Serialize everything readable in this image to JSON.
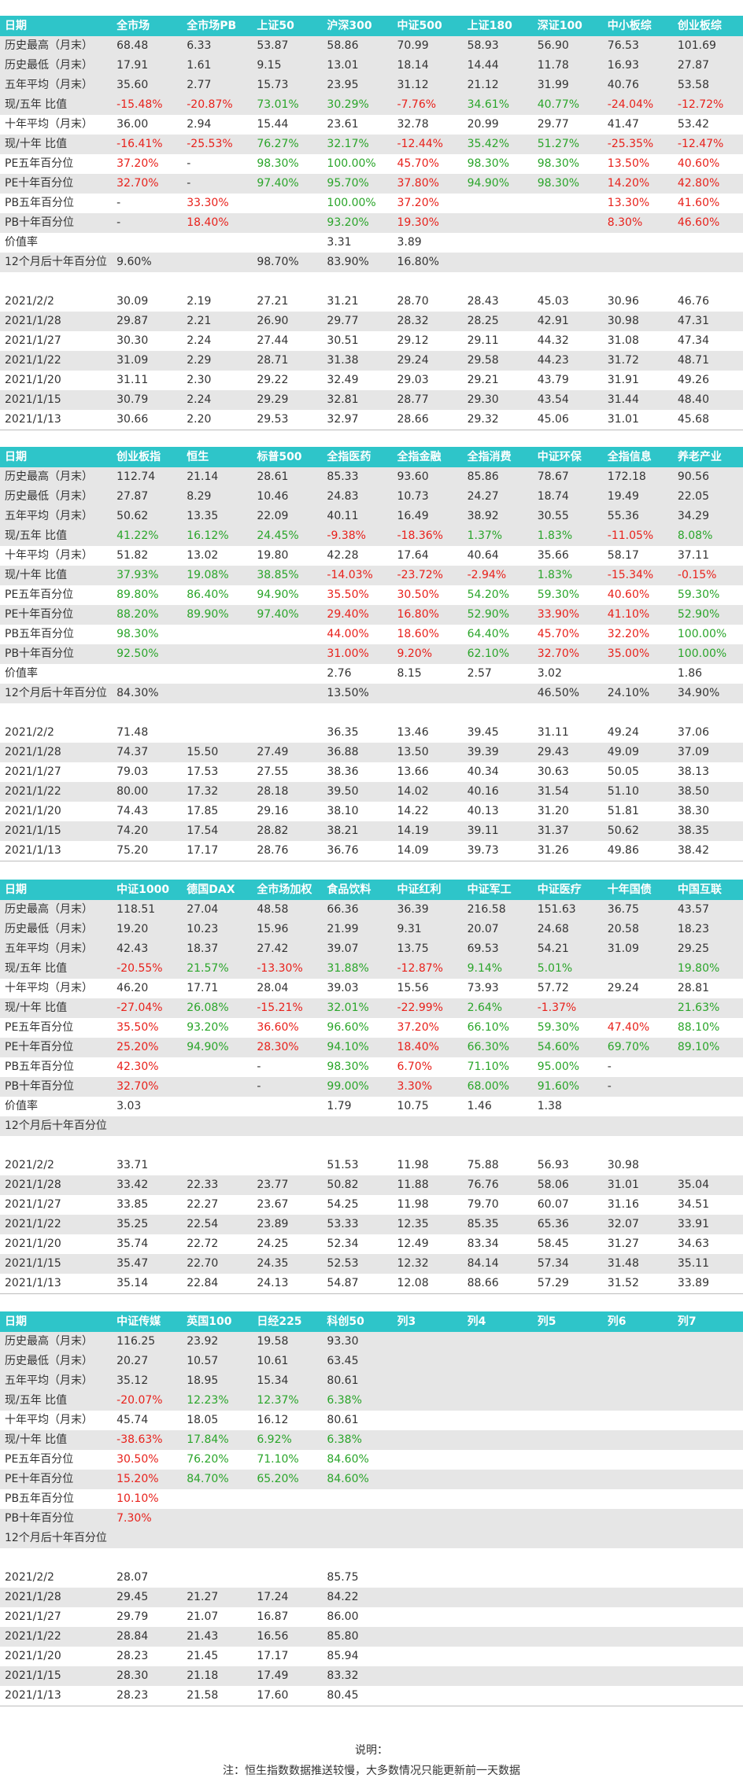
{
  "colors": {
    "header_bg": "#2ec5c9",
    "stripe_bg": "#e6e6e6",
    "up": "#2aa52a",
    "down": "#e8211b"
  },
  "tables": [
    {
      "columns": [
        "日期",
        "全市场",
        "全市场PB",
        "上证50",
        "沪深300",
        "中证500",
        "上证180",
        "深证100",
        "中小板综",
        "创业板综"
      ],
      "rows": [
        [
          "历史最高（月末）",
          "68.48",
          "6.33",
          "53.87",
          "58.86",
          "70.99",
          "58.93",
          "56.90",
          "76.53",
          "101.69"
        ],
        [
          "历史最低（月末）",
          "17.91",
          "1.61",
          "9.15",
          "13.01",
          "18.14",
          "14.44",
          "11.78",
          "16.93",
          "27.87"
        ],
        [
          "五年平均（月末）",
          "35.60",
          "2.77",
          "15.73",
          "23.95",
          "31.12",
          "21.12",
          "31.99",
          "40.76",
          "53.58"
        ],
        [
          "现/五年 比值",
          "-15.48%",
          "-20.87%",
          "73.01%",
          "30.29%",
          "-7.76%",
          "34.61%",
          "40.77%",
          "-24.04%",
          "-12.72%"
        ],
        [
          "十年平均（月末）",
          "36.00",
          "2.94",
          "15.44",
          "23.61",
          "32.78",
          "20.99",
          "29.77",
          "41.47",
          "53.42"
        ],
        [
          "现/十年 比值",
          "-16.41%",
          "-25.53%",
          "76.27%",
          "32.17%",
          "-12.44%",
          "35.42%",
          "51.27%",
          "-25.35%",
          "-12.47%"
        ],
        [
          "PE五年百分位",
          "37.20%",
          "-",
          "98.30%",
          "100.00%",
          "45.70%",
          "98.30%",
          "98.30%",
          "13.50%",
          "40.60%"
        ],
        [
          "PE十年百分位",
          "32.70%",
          "-",
          "97.40%",
          "95.70%",
          "37.80%",
          "94.90%",
          "98.30%",
          "14.20%",
          "42.80%"
        ],
        [
          "PB五年百分位",
          "-",
          "33.30%",
          "",
          "100.00%",
          "37.20%",
          "",
          "",
          "13.30%",
          "41.60%"
        ],
        [
          "PB十年百分位",
          "-",
          "18.40%",
          "",
          "93.20%",
          "19.30%",
          "",
          "",
          "8.30%",
          "46.60%"
        ],
        [
          "价值率",
          "",
          "",
          "",
          "3.31",
          "3.89",
          "",
          "",
          "",
          ""
        ],
        [
          "12个月后十年百分位",
          "9.60%",
          "",
          "98.70%",
          "83.90%",
          "16.80%",
          "",
          "",
          "",
          ""
        ],
        [
          "",
          "",
          "",
          "",
          "",
          "",
          "",
          "",
          "",
          ""
        ],
        [
          "2021/2/2",
          "30.09",
          "2.19",
          "27.21",
          "31.21",
          "28.70",
          "28.43",
          "45.03",
          "30.96",
          "46.76"
        ],
        [
          "2021/1/28",
          "29.87",
          "2.21",
          "26.90",
          "29.77",
          "28.32",
          "28.25",
          "42.91",
          "30.98",
          "47.31"
        ],
        [
          "2021/1/27",
          "30.30",
          "2.24",
          "27.44",
          "30.51",
          "29.12",
          "29.11",
          "44.32",
          "31.08",
          "47.34"
        ],
        [
          "2021/1/22",
          "31.09",
          "2.29",
          "28.71",
          "31.38",
          "29.24",
          "29.58",
          "44.23",
          "31.72",
          "48.71"
        ],
        [
          "2021/1/20",
          "31.11",
          "2.30",
          "29.22",
          "32.49",
          "29.03",
          "29.21",
          "43.79",
          "31.91",
          "49.26"
        ],
        [
          "2021/1/15",
          "30.79",
          "2.24",
          "29.29",
          "32.81",
          "28.77",
          "29.30",
          "43.54",
          "31.44",
          "48.40"
        ],
        [
          "2021/1/13",
          "30.66",
          "2.20",
          "29.53",
          "32.97",
          "28.66",
          "29.32",
          "45.06",
          "31.01",
          "45.68"
        ]
      ]
    },
    {
      "columns": [
        "日期",
        "创业板指",
        "恒生",
        "标普500",
        "全指医药",
        "全指金融",
        "全指消费",
        "中证环保",
        "全指信息",
        "养老产业"
      ],
      "rows": [
        [
          "历史最高（月末）",
          "112.74",
          "21.14",
          "28.61",
          "85.33",
          "93.60",
          "85.86",
          "78.67",
          "172.18",
          "90.56"
        ],
        [
          "历史最低（月末）",
          "27.87",
          "8.29",
          "10.46",
          "24.83",
          "10.73",
          "24.27",
          "18.74",
          "19.49",
          "22.05"
        ],
        [
          "五年平均（月末）",
          "50.62",
          "13.35",
          "22.09",
          "40.11",
          "16.49",
          "38.92",
          "30.55",
          "55.36",
          "34.29"
        ],
        [
          "现/五年 比值",
          "41.22%",
          "16.12%",
          "24.45%",
          "-9.38%",
          "-18.36%",
          "1.37%",
          "1.83%",
          "-11.05%",
          "8.08%"
        ],
        [
          "十年平均（月末）",
          "51.82",
          "13.02",
          "19.80",
          "42.28",
          "17.64",
          "40.64",
          "35.66",
          "58.17",
          "37.11"
        ],
        [
          "现/十年 比值",
          "37.93%",
          "19.08%",
          "38.85%",
          "-14.03%",
          "-23.72%",
          "-2.94%",
          "1.83%",
          "-15.34%",
          "-0.15%"
        ],
        [
          "PE五年百分位",
          "89.80%",
          "86.40%",
          "94.90%",
          "35.50%",
          "30.50%",
          "54.20%",
          "59.30%",
          "40.60%",
          "59.30%"
        ],
        [
          "PE十年百分位",
          "88.20%",
          "89.90%",
          "97.40%",
          "29.40%",
          "16.80%",
          "52.90%",
          "33.90%",
          "41.10%",
          "52.90%"
        ],
        [
          "PB五年百分位",
          "98.30%",
          "",
          "",
          "44.00%",
          "18.60%",
          "64.40%",
          "45.70%",
          "32.20%",
          "100.00%"
        ],
        [
          "PB十年百分位",
          "92.50%",
          "",
          "",
          "31.00%",
          "9.20%",
          "62.10%",
          "32.70%",
          "35.00%",
          "100.00%"
        ],
        [
          "价值率",
          "",
          "",
          "",
          "2.76",
          "8.15",
          "2.57",
          "3.02",
          "",
          "1.86"
        ],
        [
          "12个月后十年百分位",
          "84.30%",
          "",
          "",
          "13.50%",
          "",
          "",
          "46.50%",
          "24.10%",
          "34.90%"
        ],
        [
          "",
          "",
          "",
          "",
          "",
          "",
          "",
          "",
          "",
          ""
        ],
        [
          "2021/2/2",
          "71.48",
          "",
          "",
          "36.35",
          "13.46",
          "39.45",
          "31.11",
          "49.24",
          "37.06"
        ],
        [
          "2021/1/28",
          "74.37",
          "15.50",
          "27.49",
          "36.88",
          "13.50",
          "39.39",
          "29.43",
          "49.09",
          "37.09"
        ],
        [
          "2021/1/27",
          "79.03",
          "17.53",
          "27.55",
          "38.36",
          "13.66",
          "40.34",
          "30.63",
          "50.05",
          "38.13"
        ],
        [
          "2021/1/22",
          "80.00",
          "17.32",
          "28.18",
          "39.50",
          "14.02",
          "40.16",
          "31.54",
          "51.10",
          "38.50"
        ],
        [
          "2021/1/20",
          "74.43",
          "17.85",
          "29.16",
          "38.10",
          "14.22",
          "40.13",
          "31.20",
          "51.81",
          "38.30"
        ],
        [
          "2021/1/15",
          "74.20",
          "17.54",
          "28.82",
          "38.21",
          "14.19",
          "39.11",
          "31.37",
          "50.62",
          "38.35"
        ],
        [
          "2021/1/13",
          "75.20",
          "17.17",
          "28.76",
          "36.76",
          "14.09",
          "39.73",
          "31.26",
          "49.86",
          "38.42"
        ]
      ]
    },
    {
      "columns": [
        "日期",
        "中证1000",
        "德国DAX",
        "全市场加权",
        "食品饮料",
        "中证红利",
        "中证军工",
        "中证医疗",
        "十年国债",
        "中国互联"
      ],
      "rows": [
        [
          "历史最高（月末）",
          "118.51",
          "27.04",
          "48.58",
          "66.36",
          "36.39",
          "216.58",
          "151.63",
          "36.75",
          "43.57"
        ],
        [
          "历史最低（月末）",
          "19.20",
          "10.23",
          "15.96",
          "21.99",
          "9.31",
          "20.07",
          "24.68",
          "20.58",
          "18.23"
        ],
        [
          "五年平均（月末）",
          "42.43",
          "18.37",
          "27.42",
          "39.07",
          "13.75",
          "69.53",
          "54.21",
          "31.09",
          "29.25"
        ],
        [
          "现/五年 比值",
          "-20.55%",
          "21.57%",
          "-13.30%",
          "31.88%",
          "-12.87%",
          "9.14%",
          "5.01%",
          "",
          "19.80%"
        ],
        [
          "十年平均（月末）",
          "46.20",
          "17.71",
          "28.04",
          "39.03",
          "15.56",
          "73.93",
          "57.72",
          "29.24",
          "28.81"
        ],
        [
          "现/十年 比值",
          "-27.04%",
          "26.08%",
          "-15.21%",
          "32.01%",
          "-22.99%",
          "2.64%",
          "-1.37%",
          "",
          "21.63%"
        ],
        [
          "PE五年百分位",
          "35.50%",
          "93.20%",
          "36.60%",
          "96.60%",
          "37.20%",
          "66.10%",
          "59.30%",
          "47.40%",
          "88.10%"
        ],
        [
          "PE十年百分位",
          "25.20%",
          "94.90%",
          "28.30%",
          "94.10%",
          "18.40%",
          "66.30%",
          "54.60%",
          "69.70%",
          "89.10%"
        ],
        [
          "PB五年百分位",
          "42.30%",
          "",
          "-",
          "98.30%",
          "6.70%",
          "71.10%",
          "95.00%",
          "-",
          ""
        ],
        [
          "PB十年百分位",
          "32.70%",
          "",
          "-",
          "99.00%",
          "3.30%",
          "68.00%",
          "91.60%",
          "-",
          ""
        ],
        [
          "价值率",
          "3.03",
          "",
          "",
          "1.79",
          "10.75",
          "1.46",
          "1.38",
          "",
          ""
        ],
        [
          "12个月后十年百分位",
          "",
          "",
          "",
          "",
          "",
          "",
          "",
          "",
          ""
        ],
        [
          "",
          "",
          "",
          "",
          "",
          "",
          "",
          "",
          "",
          ""
        ],
        [
          "2021/2/2",
          "33.71",
          "",
          "",
          "51.53",
          "11.98",
          "75.88",
          "56.93",
          "30.98",
          ""
        ],
        [
          "2021/1/28",
          "33.42",
          "22.33",
          "23.77",
          "50.82",
          "11.88",
          "76.76",
          "58.06",
          "31.01",
          "35.04"
        ],
        [
          "2021/1/27",
          "33.85",
          "22.27",
          "23.67",
          "54.25",
          "11.98",
          "79.70",
          "60.07",
          "31.16",
          "34.51"
        ],
        [
          "2021/1/22",
          "35.25",
          "22.54",
          "23.89",
          "53.33",
          "12.35",
          "85.35",
          "65.36",
          "32.07",
          "33.91"
        ],
        [
          "2021/1/20",
          "35.74",
          "22.72",
          "24.25",
          "52.34",
          "12.49",
          "83.34",
          "58.45",
          "31.27",
          "34.63"
        ],
        [
          "2021/1/15",
          "35.47",
          "22.70",
          "24.35",
          "52.53",
          "12.32",
          "84.14",
          "57.34",
          "31.48",
          "35.11"
        ],
        [
          "2021/1/13",
          "35.14",
          "22.84",
          "24.13",
          "54.87",
          "12.08",
          "88.66",
          "57.29",
          "31.52",
          "33.89"
        ]
      ]
    },
    {
      "columns": [
        "日期",
        "中证传媒",
        "英国100",
        "日经225",
        "科创50",
        "列3",
        "列4",
        "列5",
        "列6",
        "列7"
      ],
      "rows": [
        [
          "历史最高（月末）",
          "116.25",
          "23.92",
          "19.58",
          "93.30",
          "",
          "",
          "",
          "",
          ""
        ],
        [
          "历史最低（月末）",
          "20.27",
          "10.57",
          "10.61",
          "63.45",
          "",
          "",
          "",
          "",
          ""
        ],
        [
          "五年平均（月末）",
          "35.12",
          "18.95",
          "15.34",
          "80.61",
          "",
          "",
          "",
          "",
          ""
        ],
        [
          "现/五年 比值",
          "-20.07%",
          "12.23%",
          "12.37%",
          "6.38%",
          "",
          "",
          "",
          "",
          ""
        ],
        [
          "十年平均（月末）",
          "45.74",
          "18.05",
          "16.12",
          "80.61",
          "",
          "",
          "",
          "",
          ""
        ],
        [
          "现/十年 比值",
          "-38.63%",
          "17.84%",
          "6.92%",
          "6.38%",
          "",
          "",
          "",
          "",
          ""
        ],
        [
          "PE五年百分位",
          "30.50%",
          "76.20%",
          "71.10%",
          "84.60%",
          "",
          "",
          "",
          "",
          ""
        ],
        [
          "PE十年百分位",
          "15.20%",
          "84.70%",
          "65.20%",
          "84.60%",
          "",
          "",
          "",
          "",
          ""
        ],
        [
          "PB五年百分位",
          "10.10%",
          "",
          "",
          "",
          "",
          "",
          "",
          "",
          ""
        ],
        [
          "PB十年百分位",
          "7.30%",
          "",
          "",
          "",
          "",
          "",
          "",
          "",
          ""
        ],
        [
          "12个月后十年百分位",
          "",
          "",
          "",
          "",
          "",
          "",
          "",
          "",
          ""
        ],
        [
          "",
          "",
          "",
          "",
          "",
          "",
          "",
          "",
          "",
          ""
        ],
        [
          "2021/2/2",
          "28.07",
          "",
          "",
          "85.75",
          "",
          "",
          "",
          "",
          ""
        ],
        [
          "2021/1/28",
          "29.45",
          "21.27",
          "17.24",
          "84.22",
          "",
          "",
          "",
          "",
          ""
        ],
        [
          "2021/1/27",
          "29.79",
          "21.07",
          "16.87",
          "86.00",
          "",
          "",
          "",
          "",
          ""
        ],
        [
          "2021/1/22",
          "28.84",
          "21.43",
          "16.56",
          "85.80",
          "",
          "",
          "",
          "",
          ""
        ],
        [
          "2021/1/20",
          "28.23",
          "21.45",
          "17.17",
          "85.94",
          "",
          "",
          "",
          "",
          ""
        ],
        [
          "2021/1/15",
          "28.30",
          "21.18",
          "17.49",
          "83.32",
          "",
          "",
          "",
          "",
          ""
        ],
        [
          "2021/1/13",
          "28.23",
          "21.58",
          "17.60",
          "80.45",
          "",
          "",
          "",
          "",
          ""
        ]
      ]
    }
  ],
  "notes": {
    "title": "说明：",
    "line1": "注：恒生指数数据推送较慢，大多数情况只能更新前一天数据"
  }
}
